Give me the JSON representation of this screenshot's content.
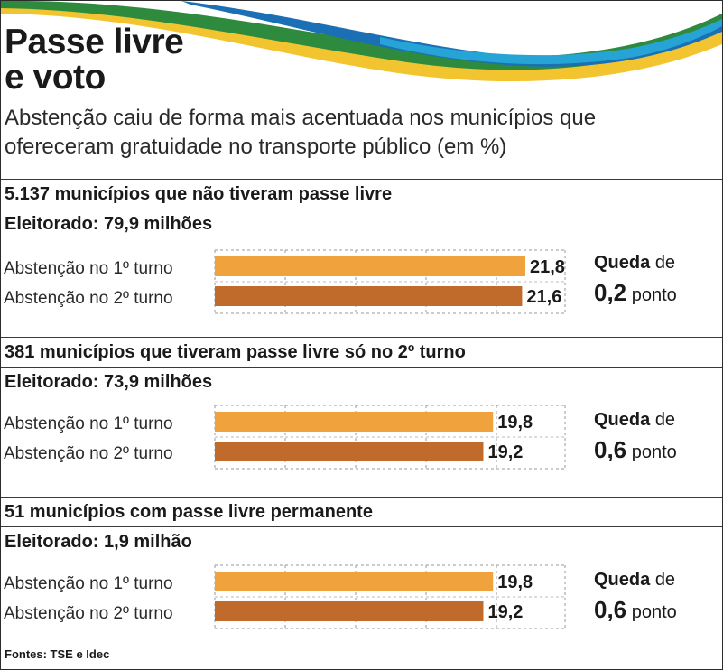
{
  "header": {
    "title_line1": "Passe livre",
    "title_line2": "e voto",
    "subtitle": "Abstenção caiu de forma mais acentuada nos municípios que ofereceram gratuidade no transporte público (em %)"
  },
  "colors": {
    "turno1": "#F0A23C",
    "turno2": "#C06A2B",
    "wave_green": "#2E8B3E",
    "wave_blue": "#1B6FB5",
    "wave_yellow": "#F2C530",
    "wave_cyan": "#27A4D6"
  },
  "chart_data": [
    {
      "type": "bar",
      "orientation": "horizontal",
      "title": "5.137 municípios que não tiveram passe livre",
      "electorate": "Eleitorado: 79,9 milhões",
      "unit": "%",
      "xlim": [
        0,
        21.8
      ],
      "categories": [
        "Abstenção no 1º turno",
        "Abstenção no 2º turno"
      ],
      "values": [
        21.8,
        21.6
      ],
      "value_labels": [
        "21,8",
        "21,6"
      ],
      "drop": {
        "label": "Queda",
        "connector": "de",
        "value": "0,2",
        "unit": "ponto"
      }
    },
    {
      "type": "bar",
      "orientation": "horizontal",
      "title": "381 municípios que tiveram passe livre só no 2º turno",
      "electorate": "Eleitorado: 73,9 milhões",
      "unit": "%",
      "xlim": [
        0,
        21.8
      ],
      "categories": [
        "Abstenção no 1º turno",
        "Abstenção no 2º turno"
      ],
      "values": [
        19.8,
        19.2
      ],
      "value_labels": [
        "19,8",
        "19,2"
      ],
      "drop": {
        "label": "Queda",
        "connector": "de",
        "value": "0,6",
        "unit": "ponto"
      }
    },
    {
      "type": "bar",
      "orientation": "horizontal",
      "title": "51 municípios com passe livre permanente",
      "electorate": "Eleitorado: 1,9 milhão",
      "unit": "%",
      "xlim": [
        0,
        21.8
      ],
      "categories": [
        "Abstenção no 1º turno",
        "Abstenção no 2º turno"
      ],
      "values": [
        19.8,
        19.2
      ],
      "value_labels": [
        "19,8",
        "19,2"
      ],
      "drop": {
        "label": "Queda",
        "connector": "de",
        "value": "0,6",
        "unit": "ponto"
      }
    }
  ],
  "footer": {
    "sources": "Fontes: TSE e Idec"
  }
}
